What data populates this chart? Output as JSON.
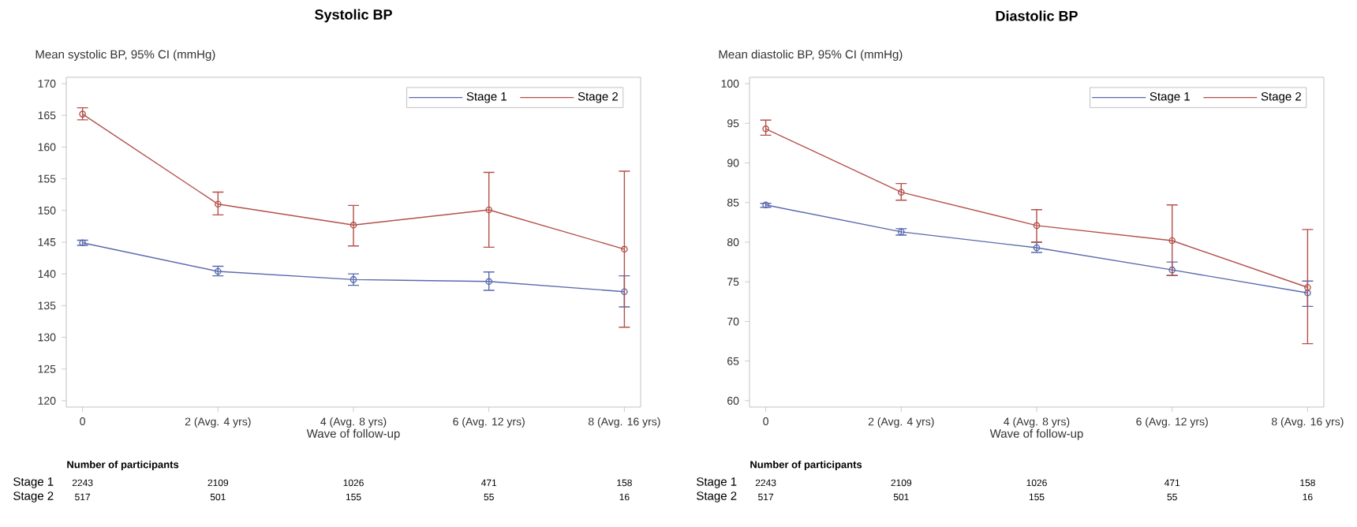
{
  "chart_data": [
    {
      "type": "line",
      "title": "Systolic BP",
      "ylabel": "Mean systolic BP, 95% CI (mmHg)",
      "xlabel": "Wave of follow-up",
      "categories": [
        "0",
        "2 (Avg. 4 yrs)",
        "4 (Avg. 8 yrs)",
        "6 (Avg. 12 yrs)",
        "8 (Avg. 16 yrs)"
      ],
      "series": [
        {
          "name": "Stage 1",
          "color": "#5a6aae",
          "values": [
            144.9,
            140.4,
            139.1,
            138.8,
            137.2
          ],
          "errors": [
            [
              144.5,
              145.3
            ],
            [
              139.7,
              141.2
            ],
            [
              138.2,
              140.0
            ],
            [
              137.4,
              140.3
            ],
            [
              134.8,
              139.7
            ]
          ]
        },
        {
          "name": "Stage 2",
          "color": "#b4504a",
          "values": [
            165.2,
            151.0,
            147.7,
            150.1,
            143.9
          ],
          "errors": [
            [
              164.3,
              166.2
            ],
            [
              149.3,
              152.9
            ],
            [
              144.4,
              150.8
            ],
            [
              144.2,
              156.0
            ],
            [
              131.6,
              156.2
            ]
          ]
        }
      ],
      "ylim": [
        119,
        171
      ],
      "yticks": [
        120,
        125,
        130,
        135,
        140,
        145,
        150,
        155,
        160,
        165,
        170
      ],
      "legend": "top right",
      "marker": "circle",
      "annotations": [
        "Number of participants",
        "Stage 1",
        "2243",
        "2109",
        "1026",
        "471",
        "158",
        "Stage 2",
        "517",
        "501",
        "155",
        "55",
        "16"
      ]
    },
    {
      "type": "line",
      "title": "Diastolic BP",
      "ylabel": "Mean diastolic BP, 95% CI (mmHg)",
      "xlabel": "Wave of follow-up",
      "categories": [
        "0",
        "2 (Avg. 4 yrs)",
        "4 (Avg. 8 yrs)",
        "6 (Avg. 12 yrs)",
        "8 (Avg. 16 yrs)"
      ],
      "series": [
        {
          "name": "Stage 1",
          "color": "#5a6aae",
          "values": [
            84.7,
            81.3,
            79.3,
            76.5,
            73.6
          ],
          "errors": [
            [
              84.4,
              84.9
            ],
            [
              80.9,
              81.7
            ],
            [
              78.7,
              80.0
            ],
            [
              75.8,
              77.5
            ],
            [
              71.9,
              75.1
            ]
          ]
        },
        {
          "name": "Stage 2",
          "color": "#b4504a",
          "values": [
            94.3,
            86.3,
            82.1,
            80.2,
            74.3
          ],
          "errors": [
            [
              93.5,
              95.4
            ],
            [
              85.3,
              87.4
            ],
            [
              80.0,
              84.1
            ],
            [
              75.8,
              84.7
            ],
            [
              67.2,
              81.6
            ]
          ]
        }
      ],
      "ylim": [
        59.2,
        100.8
      ],
      "yticks": [
        60,
        65,
        70,
        75,
        80,
        85,
        90,
        95,
        100
      ],
      "legend": "top right",
      "marker": "circle",
      "annotations": [
        "Number of participants",
        "Stage 1",
        "2243",
        "2109",
        "1026",
        "471",
        "158",
        "Stage 2",
        "517",
        "501",
        "155",
        "55",
        "16"
      ]
    }
  ]
}
